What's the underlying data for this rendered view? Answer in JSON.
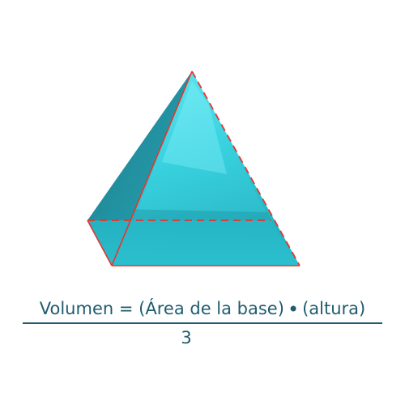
{
  "colors": {
    "formula_text": "#1f5c6e",
    "fraction_line": "#1f5c6e",
    "edge_highlight": "#e8342c",
    "pyramid_front": "#2fc9d8",
    "pyramid_left": "#1a8fa0",
    "pyramid_right": "#23aebf",
    "pyramid_base": "#2cb4c4"
  },
  "formula": {
    "lhs": "Volumen",
    "equals": "=",
    "factor1": "(Área de la base)",
    "operator": "•",
    "factor2": "(altura)",
    "denominator": "3"
  }
}
